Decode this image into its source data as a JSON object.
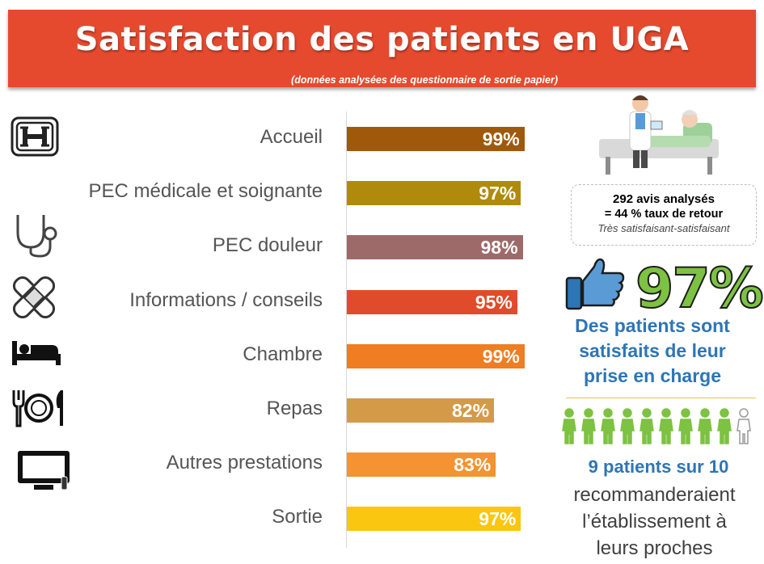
{
  "header": {
    "title": "Satisfaction des patients en UGA",
    "subtitle": "(données analysées des questionnaire de sortie papier)"
  },
  "chart_data": {
    "type": "bar",
    "orientation": "horizontal",
    "categories": [
      "Accueil",
      "PEC médicale et soignante",
      "PEC douleur",
      "Informations / conseils",
      "Chambre",
      "Repas",
      "Autres prestations",
      "Sortie"
    ],
    "values": [
      99,
      97,
      98,
      95,
      99,
      82,
      83,
      97
    ],
    "value_labels": [
      "99%",
      "97%",
      "98%",
      "95%",
      "99%",
      "82%",
      "83%",
      "97%"
    ],
    "colors": [
      "#a0590b",
      "#b08b0b",
      "#9e6a69",
      "#e04b2b",
      "#ef7d22",
      "#d49a48",
      "#f59231",
      "#fbc60f"
    ],
    "xlim": [
      0,
      100
    ],
    "unit": "%",
    "grid": false,
    "legend": "none",
    "icons": [
      "hospital-icon",
      "stethoscope-icon",
      "bandage-icon",
      "bed-icon",
      "plate-cutlery-icon",
      "television-icon"
    ]
  },
  "summary": {
    "reviews": "292 avis analysés",
    "return_rate": "= 44 % taux de retour",
    "scope": "Très satisfaisant-satisfaisant",
    "big_percent": "97%",
    "satisfied_line1": "Des patients sont",
    "satisfied_line2": "satisfaits de leur",
    "satisfied_line3": "prise en charge",
    "nine_of_ten": "9 patients sur 10",
    "recommend_line1": "recommanderaient",
    "recommend_line2": "l’établissement à",
    "recommend_line3": "leurs proches",
    "recommend_count": 9,
    "people_total": 10
  },
  "colors": {
    "banner": "#e54a2e",
    "accent_green": "#7dc242",
    "accent_blue": "#2e75b6"
  }
}
